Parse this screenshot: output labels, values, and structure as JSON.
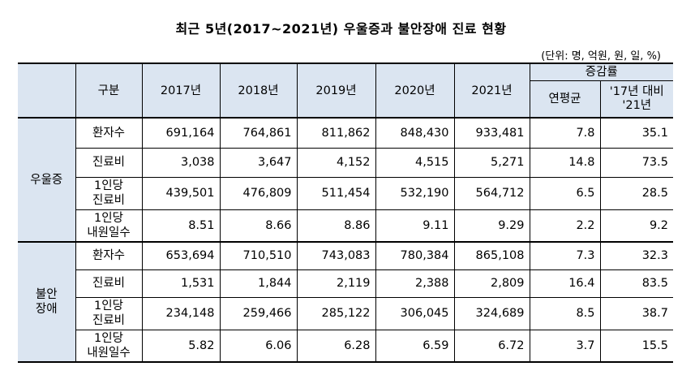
{
  "title": "최근 5년(2017~2021년) 우울증과 불안장애 진료 현황",
  "unit": "(단위: 명, 억원, 원, 일, %)",
  "header": {
    "category": "구분",
    "years": [
      "2017년",
      "2018년",
      "2019년",
      "2020년",
      "2021년"
    ],
    "growth": "증감률",
    "avg": "연평균",
    "vs_line1": "'17년 대비",
    "vs_line2": "'21년"
  },
  "groups": [
    {
      "name": "우울증",
      "rows": [
        {
          "label": "환자수",
          "values": [
            "691,164",
            "764,861",
            "811,862",
            "848,430",
            "933,481",
            "7.8",
            "35.1"
          ]
        },
        {
          "label": "진료비",
          "values": [
            "3,038",
            "3,647",
            "4,152",
            "4,515",
            "5,271",
            "14.8",
            "73.5"
          ]
        },
        {
          "label1": "1인당",
          "label2": "진료비",
          "values": [
            "439,501",
            "476,809",
            "511,454",
            "532,190",
            "564,712",
            "6.5",
            "28.5"
          ]
        },
        {
          "label1": "1인당",
          "label2": "내원일수",
          "values": [
            "8.51",
            "8.66",
            "8.86",
            "9.11",
            "9.29",
            "2.2",
            "9.2"
          ]
        }
      ]
    },
    {
      "name1": "불안",
      "name2": "장애",
      "rows": [
        {
          "label": "환자수",
          "values": [
            "653,694",
            "710,510",
            "743,083",
            "780,384",
            "865,108",
            "7.3",
            "32.3"
          ]
        },
        {
          "label": "진료비",
          "values": [
            "1,531",
            "1,844",
            "2,119",
            "2,388",
            "2,809",
            "16.4",
            "83.5"
          ]
        },
        {
          "label1": "1인당",
          "label2": "진료비",
          "values": [
            "234,148",
            "259,466",
            "285,122",
            "306,045",
            "324,689",
            "8.5",
            "38.7"
          ]
        },
        {
          "label1": "1인당",
          "label2": "내원일수",
          "values": [
            "5.82",
            "6.06",
            "6.28",
            "6.59",
            "6.72",
            "3.7",
            "15.5"
          ]
        }
      ]
    }
  ]
}
